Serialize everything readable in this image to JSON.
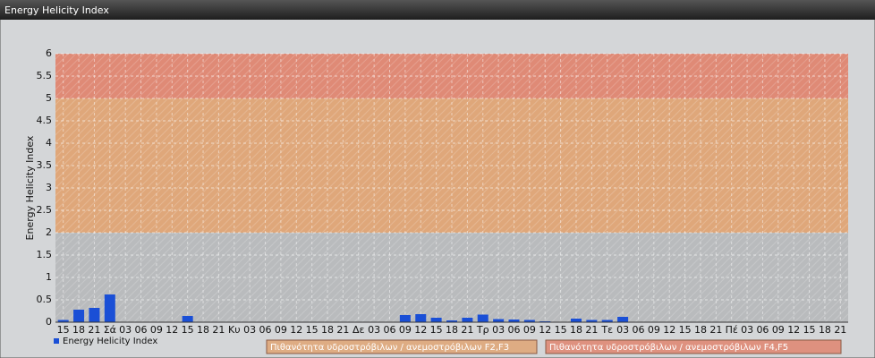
{
  "chart_data": {
    "type": "bar",
    "title": "Energy Helicity Index",
    "y_label": "Energy Helicity Index",
    "categories": [
      "15",
      "18",
      "21",
      "Σά",
      "03",
      "06",
      "09",
      "12",
      "15",
      "18",
      "21",
      "Κυ",
      "03",
      "06",
      "09",
      "12",
      "15",
      "18",
      "21",
      "Δε",
      "03",
      "06",
      "09",
      "12",
      "15",
      "18",
      "21",
      "Τρ",
      "03",
      "06",
      "09",
      "12",
      "15",
      "18",
      "21",
      "Τε",
      "03",
      "06",
      "09",
      "12",
      "15",
      "18",
      "21",
      "Πέ",
      "03",
      "06",
      "09",
      "12",
      "15",
      "18",
      "21"
    ],
    "series": [
      {
        "name": "Energy Helicity Index",
        "color": "#1a4fd6",
        "values": [
          0.05,
          0.28,
          0.32,
          0.62,
          0.01,
          0.01,
          0.01,
          0.01,
          0.14,
          0.01,
          0.01,
          0.01,
          0.01,
          0.01,
          0.01,
          0.01,
          0.01,
          0.01,
          0.01,
          0.01,
          0.01,
          0.01,
          0.16,
          0.18,
          0.1,
          0.04,
          0.1,
          0.17,
          0.07,
          0.06,
          0.05,
          0.02,
          0.01,
          0.08,
          0.05,
          0.05,
          0.12,
          0.01,
          0.01,
          0.01,
          0.01,
          0.01,
          0.01,
          0.01,
          0.01,
          0.01,
          0.01,
          0.01,
          0.01,
          0.01,
          0.01
        ]
      }
    ],
    "ylim": [
      0,
      6
    ],
    "yticks": [
      0,
      0.5,
      1,
      1.5,
      2,
      2.5,
      3,
      3.5,
      4,
      4.5,
      5,
      5.5,
      6
    ],
    "grid": true,
    "bands": [
      {
        "from": 0,
        "to": 2,
        "color": "#b9bbbd"
      },
      {
        "from": 2,
        "to": 5,
        "color": "#dfa77a",
        "label": "Πιθανότητα υδροστρόβιλων / ανεμοστρόβιλων F2,F3"
      },
      {
        "from": 5,
        "to": 6,
        "color": "#df8a76",
        "label": "Πιθανότητα υδροστρόβιλων / ανεμοστρόβιλων F4,F5"
      }
    ]
  }
}
